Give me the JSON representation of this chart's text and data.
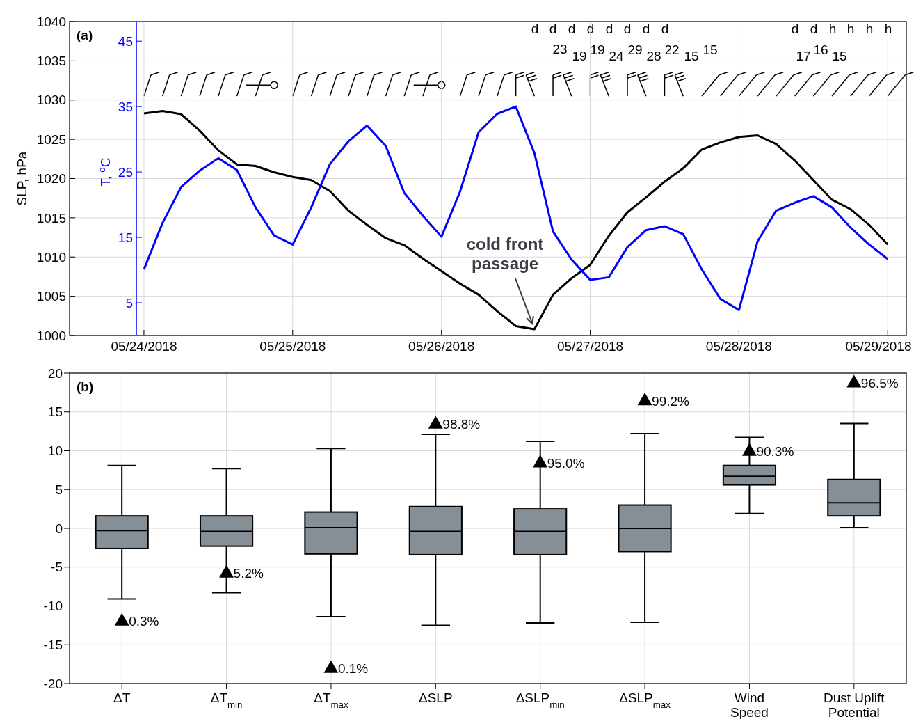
{
  "chart_data": [
    {
      "type": "line",
      "title": "(a)",
      "ylabel": "SLP, hPa",
      "y2label": "T, $^{o}$C",
      "x": [
        "2018-05-24T00:00",
        "2018-05-24T03:00",
        "2018-05-24T06:00",
        "2018-05-24T09:00",
        "2018-05-24T12:00",
        "2018-05-24T15:00",
        "2018-05-24T18:00",
        "2018-05-24T21:00",
        "2018-05-25T00:00",
        "2018-05-25T03:00",
        "2018-05-25T06:00",
        "2018-05-25T09:00",
        "2018-05-25T12:00",
        "2018-05-25T15:00",
        "2018-05-25T18:00",
        "2018-05-25T21:00",
        "2018-05-26T00:00",
        "2018-05-26T03:00",
        "2018-05-26T06:00",
        "2018-05-26T09:00",
        "2018-05-26T12:00",
        "2018-05-26T15:00",
        "2018-05-26T18:00",
        "2018-05-26T21:00",
        "2018-05-27T00:00",
        "2018-05-27T03:00",
        "2018-05-27T06:00",
        "2018-05-27T09:00",
        "2018-05-27T12:00",
        "2018-05-27T15:00",
        "2018-05-27T18:00",
        "2018-05-27T21:00",
        "2018-05-28T00:00",
        "2018-05-28T03:00",
        "2018-05-28T06:00",
        "2018-05-28T09:00",
        "2018-05-28T12:00",
        "2018-05-28T15:00",
        "2018-05-28T18:00",
        "2018-05-28T21:00",
        "2018-05-29T00:00"
      ],
      "series": [
        {
          "color": "#000000",
          "values": [
            1028.3,
            1028.6,
            1028.2,
            1026.1,
            1023.6,
            1021.8,
            1021.6,
            1020.8,
            1020.2,
            1019.8,
            1018.4,
            1015.9,
            1014.1,
            1012.4,
            1011.5,
            1009.8,
            1008.2,
            1006.6,
            1005.2,
            1003.1,
            1001.2,
            1000.8,
            1005.2,
            1007.3,
            1009.0,
            1012.7,
            1015.7,
            1017.6,
            1019.6,
            1021.3,
            1023.7,
            1024.6,
            1025.3,
            1025.5,
            1024.4,
            1022.3,
            1019.8,
            1017.3,
            1016.1,
            1014.1,
            1011.6
          ]
        },
        {
          "color": "#0000ff",
          "axis": "y2",
          "values": [
            10.1,
            17.2,
            22.7,
            25.2,
            27.1,
            25.3,
            19.6,
            15.3,
            13.9,
            19.6,
            26.2,
            29.7,
            32.1,
            29.0,
            21.8,
            18.3,
            15.1,
            22.0,
            31.1,
            33.9,
            35.0,
            27.9,
            15.9,
            11.6,
            8.5,
            8.9,
            13.5,
            16.1,
            16.7,
            15.5,
            10.1,
            5.6,
            3.9,
            14.4,
            19.1,
            20.3,
            21.3,
            19.6,
            16.5,
            13.9,
            11.7
          ]
        }
      ],
      "xlim": [
        "2018-05-23T12:00",
        "2018-05-29T03:00"
      ],
      "xticks": [
        {
          "value": "2018-05-24",
          "label": "05/24/2018"
        },
        {
          "value": "2018-05-25",
          "label": "05/25/2018"
        },
        {
          "value": "2018-05-26",
          "label": "05/26/2018"
        },
        {
          "value": "2018-05-27",
          "label": "05/27/2018"
        },
        {
          "value": "2018-05-28",
          "label": "05/28/2018"
        },
        {
          "value": "2018-05-29",
          "label": "05/29/2018"
        }
      ],
      "ylim": [
        1000,
        1040
      ],
      "yticks": [
        1000,
        1005,
        1010,
        1015,
        1020,
        1025,
        1030,
        1035,
        1040
      ],
      "y2lim": [
        0,
        48
      ],
      "y2ticks": [
        5,
        15,
        25,
        35,
        45
      ],
      "grid": true,
      "annotations": [
        "cold front passage",
        "d",
        "d",
        "d",
        "d",
        "d",
        "d",
        "d",
        "d",
        "d",
        "d",
        "h",
        "h",
        "h",
        "h",
        "23",
        "19",
        "19",
        "24",
        "29",
        "28",
        "22",
        "15",
        "15",
        "17",
        "16",
        "15"
      ]
    },
    {
      "type": "box",
      "title": "(b)",
      "categories": [
        "ΔT",
        "ΔT$_{min}$",
        "ΔT$_{max}$",
        "ΔSLP",
        "ΔSLP$_{min}$",
        "ΔSLP$_{max}$",
        "Wind Speed",
        "Dust Uplift Potential"
      ],
      "series": [
        {
          "type": "box",
          "color": "#868e96",
          "boxes": [
            {
              "low": -9.1,
              "q1": -2.6,
              "median": -0.3,
              "q3": 1.6,
              "high": 8.1
            },
            {
              "low": -8.3,
              "q1": -2.3,
              "median": -0.4,
              "q3": 1.6,
              "high": 7.7
            },
            {
              "low": -11.4,
              "q1": -3.3,
              "median": 0.1,
              "q3": 2.1,
              "high": 10.3
            },
            {
              "low": -12.5,
              "q1": -3.4,
              "median": -0.4,
              "q3": 2.8,
              "high": 12.1
            },
            {
              "low": -12.2,
              "q1": -3.4,
              "median": -0.4,
              "q3": 2.5,
              "high": 11.2
            },
            {
              "low": -12.1,
              "q1": -3.0,
              "median": 0.0,
              "q3": 3.0,
              "high": 12.2
            },
            {
              "low": 1.9,
              "q1": 5.6,
              "median": 6.7,
              "q3": 8.1,
              "high": 11.7
            },
            {
              "low": 0.1,
              "q1": 1.6,
              "median": 3.3,
              "q3": 6.3,
              "high": 13.5
            }
          ]
        },
        {
          "type": "scatter",
          "color": "#000000",
          "marker": "triangle",
          "x": [
            "ΔT",
            "ΔT$_{min}$",
            "ΔT$_{max}$",
            "ΔSLP",
            "ΔSLP$_{min}$",
            "ΔSLP$_{max}$",
            "Wind Speed",
            "Dust Uplift Potential"
          ],
          "values": [
            -12.0,
            -5.8,
            -18.1,
            13.4,
            8.4,
            16.4,
            9.9,
            18.7
          ]
        }
      ],
      "annotations": [
        {
          "text": "0.3%",
          "x": "ΔT",
          "y": -12.0
        },
        {
          "text": "5.2%",
          "x": "ΔT$_{min}$",
          "y": -5.8
        },
        {
          "text": "0.1%",
          "x": "ΔT$_{max}$",
          "y": -18.1
        },
        {
          "text": "98.8%",
          "x": "ΔSLP",
          "y": 13.4
        },
        {
          "text": "95.0%",
          "x": "ΔSLP$_{min}$",
          "y": 8.4
        },
        {
          "text": "99.2%",
          "x": "ΔSLP$_{max}$",
          "y": 16.4
        },
        {
          "text": "90.3%",
          "x": "Wind Speed",
          "y": 9.9
        },
        {
          "text": "96.5%",
          "x": "Dust Uplift Potential",
          "y": 18.7
        }
      ],
      "ylim": [
        -20,
        20
      ],
      "yticks": [
        -20,
        -15,
        -10,
        -5,
        0,
        5,
        10,
        15,
        20
      ],
      "grid": true
    }
  ]
}
